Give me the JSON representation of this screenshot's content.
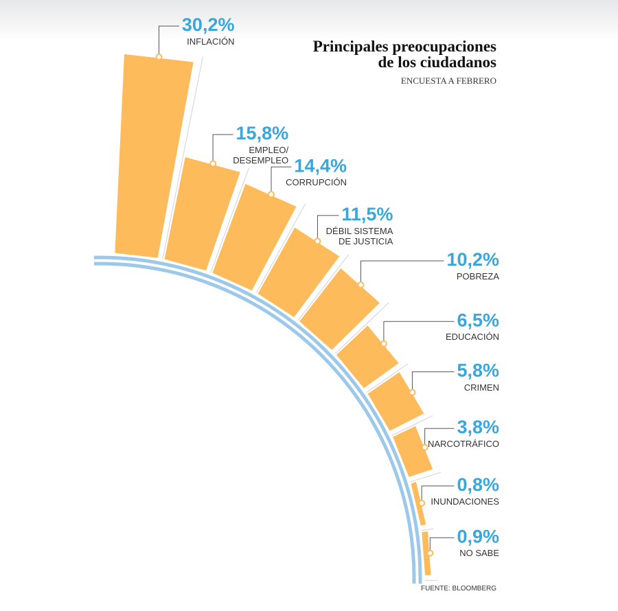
{
  "chart_data": {
    "type": "radial_bar",
    "title": "Principales preocupaciones\nde los ciudadanos",
    "subtitle": "ENCUESTA A FEBRERO",
    "source": "FUENTE: BLOOMBERG",
    "categories": [
      "INFLACIÓN",
      "EMPLEO/\nDESEMPLEO",
      "CORRUPCIÓN",
      "DÉBIL SISTEMA\nDE JUSTICIA",
      "POBREZA",
      "EDUCACIÓN",
      "CRIMEN",
      "NARCOTRÁFICO",
      "INUNDACIONES",
      "NO SABE"
    ],
    "values": [
      30.2,
      15.8,
      14.4,
      11.5,
      10.2,
      6.5,
      5.8,
      3.8,
      0.8,
      0.9
    ],
    "value_labels": [
      "30,2%",
      "15,8%",
      "14,4%",
      "11,5%",
      "10,2%",
      "6,5%",
      "5,8%",
      "3,8%",
      "0,8%",
      "0,9%"
    ],
    "color": "#fdbb5c",
    "label_color": "#3aa6da",
    "arc_color": "#9cc8ea"
  }
}
